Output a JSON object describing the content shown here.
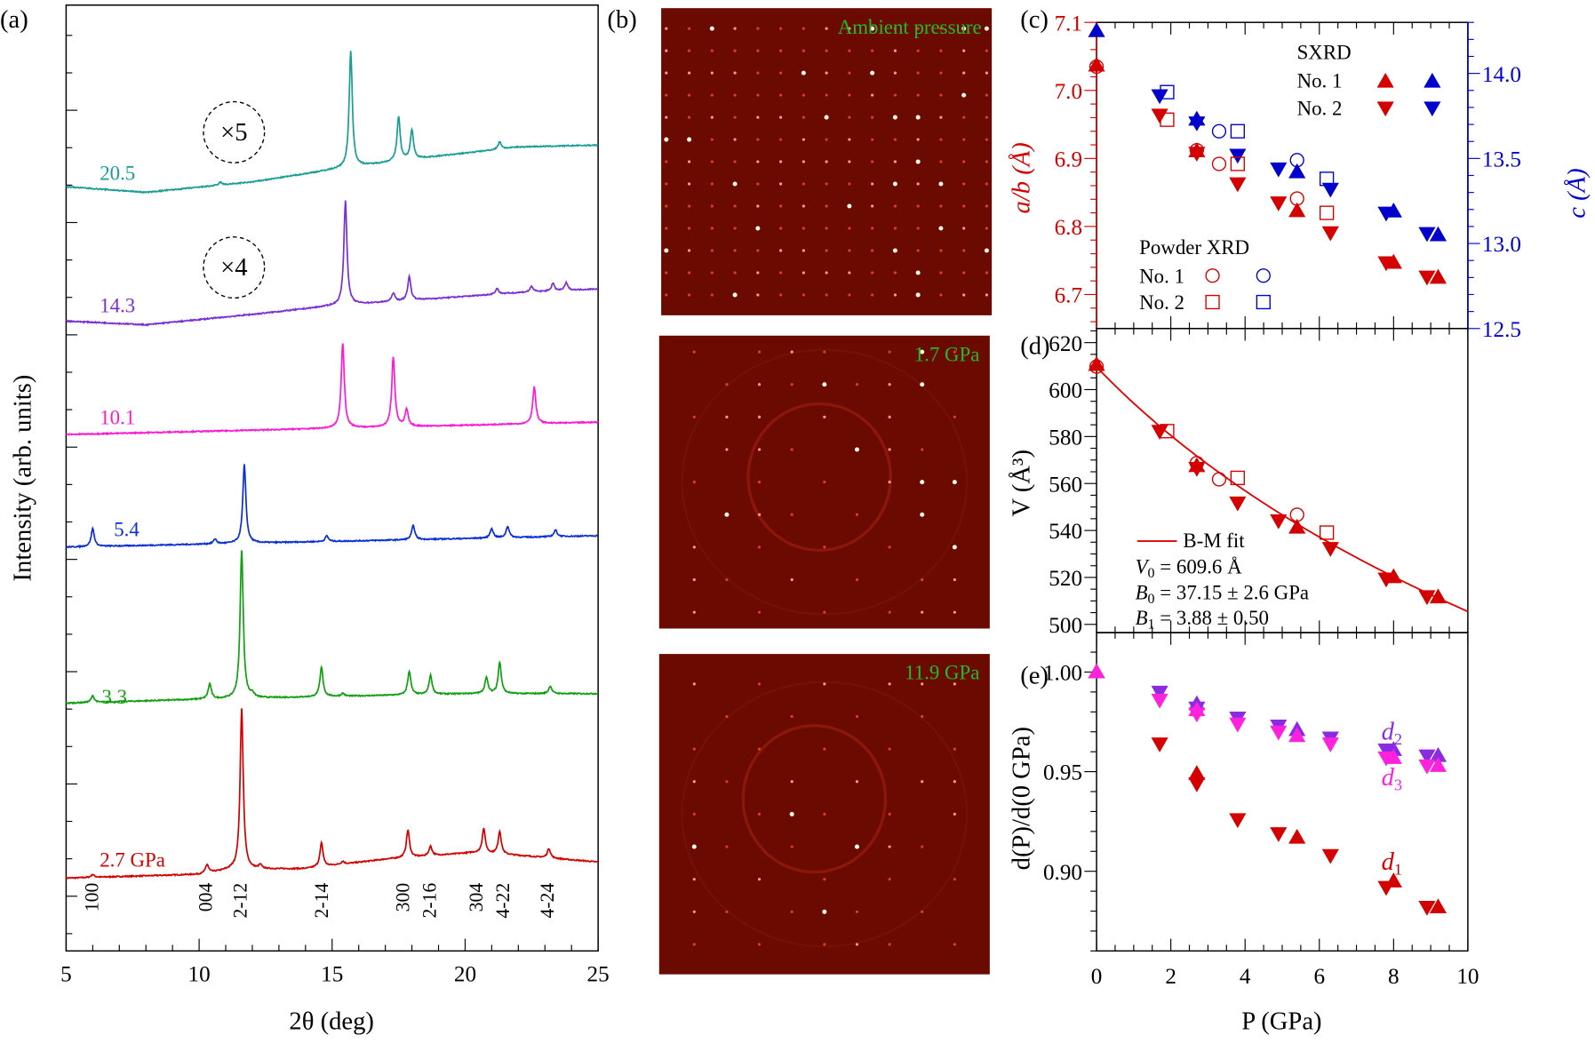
{
  "panel_labels": {
    "a": "(a)",
    "b": "(b)",
    "c": "(c)",
    "d": "(d)",
    "e": "(e)"
  },
  "colors": {
    "red": "#d40000",
    "blue": "#0000cc",
    "teal": "#1a9e94",
    "purple": "#7a2fd6",
    "magenta": "#ff1ad4",
    "green": "#12a012",
    "violet": "#8a2be2",
    "pink": "#ff22dd",
    "image_bg": "#6a0a00",
    "image_label": "#22bb22"
  },
  "chart_data": [
    {
      "id": "a",
      "type": "line",
      "xlabel": "2θ (deg)",
      "ylabel": "Intensity (arb. units)",
      "xlim": [
        5,
        25
      ],
      "xticks": [
        "5",
        "10",
        "15",
        "20",
        "25"
      ],
      "ylim": [
        0,
        100
      ],
      "yticklabels": false,
      "annotations": [
        "×5",
        "×4"
      ],
      "reflections": [
        {
          "label": "100",
          "x": 6.0
        },
        {
          "label": "004",
          "x": 10.3
        },
        {
          "label": "2-12",
          "x": 11.6
        },
        {
          "label": "2-14",
          "x": 14.6
        },
        {
          "label": "300",
          "x": 17.8
        },
        {
          "label": "2-16",
          "x": 18.6
        },
        {
          "label": "304",
          "x": 20.6
        },
        {
          "label": "4-22",
          "x": 21.3
        },
        {
          "label": "4-24",
          "x": 23.1
        }
      ],
      "series": [
        {
          "name": "2.7 GPa",
          "color": "#d40000",
          "baseline": [
            [
              5,
              7.7
            ],
            [
              10,
              8.1
            ],
            [
              11.2,
              8.6
            ],
            [
              14,
              8.7
            ],
            [
              17,
              9.7
            ],
            [
              20.3,
              10.4
            ],
            [
              22,
              10.1
            ],
            [
              25,
              9.4
            ]
          ],
          "peaks": [
            [
              6.0,
              0.3
            ],
            [
              10.3,
              0.9
            ],
            [
              11.6,
              17.0
            ],
            [
              12.3,
              0.4
            ],
            [
              14.6,
              2.5
            ],
            [
              15.4,
              0.3
            ],
            [
              17.85,
              2.9
            ],
            [
              18.7,
              1.0
            ],
            [
              20.7,
              2.6
            ],
            [
              21.3,
              2.4
            ],
            [
              23.15,
              1.0
            ]
          ]
        },
        {
          "name": "3.3",
          "color": "#12a012",
          "baseline": [
            [
              5,
              26.2
            ],
            [
              10,
              26.6
            ],
            [
              15,
              26.9
            ],
            [
              20,
              27.2
            ],
            [
              25,
              27.2
            ]
          ],
          "peaks": [
            [
              6.0,
              0.7
            ],
            [
              10.4,
              1.6
            ],
            [
              11.6,
              15.7
            ],
            [
              12.0,
              0.4
            ],
            [
              14.6,
              3.1
            ],
            [
              15.4,
              0.3
            ],
            [
              17.9,
              2.5
            ],
            [
              18.7,
              2.0
            ],
            [
              20.8,
              1.7
            ],
            [
              21.3,
              3.3
            ],
            [
              23.2,
              0.8
            ]
          ]
        },
        {
          "name": "5.4",
          "color": "#0a2fd8",
          "baseline": [
            [
              5,
              42.7
            ],
            [
              25,
              43.9
            ]
          ],
          "peaks": [
            [
              6.0,
              1.9
            ],
            [
              10.6,
              0.5
            ],
            [
              11.7,
              8.3
            ],
            [
              14.8,
              0.6
            ],
            [
              18.05,
              1.5
            ],
            [
              21.0,
              1.0
            ],
            [
              21.6,
              1.2
            ],
            [
              23.4,
              0.7
            ]
          ]
        },
        {
          "name": "10.1",
          "color": "#ff1ad4",
          "baseline": [
            [
              5,
              54.6
            ],
            [
              25,
              55.9
            ]
          ],
          "peaks": [
            [
              15.4,
              9.0
            ],
            [
              17.3,
              7.4
            ],
            [
              17.8,
              1.8
            ],
            [
              22.6,
              3.9
            ]
          ]
        },
        {
          "name": "14.3",
          "color": "#7a2fd6",
          "baseline": [
            [
              5,
              66.6
            ],
            [
              8,
              66.2
            ],
            [
              12,
              67.3
            ],
            [
              15,
              68.2
            ],
            [
              18,
              68.8
            ],
            [
              22,
              69.6
            ],
            [
              25,
              70.0
            ]
          ],
          "peaks": [
            [
              15.5,
              11.0
            ],
            [
              17.3,
              0.9
            ],
            [
              17.9,
              2.5
            ],
            [
              21.2,
              0.6
            ],
            [
              22.5,
              0.6
            ],
            [
              23.3,
              0.8
            ],
            [
              23.8,
              0.8
            ]
          ]
        },
        {
          "name": "20.5",
          "color": "#1a9e94",
          "baseline": [
            [
              5,
              80.8
            ],
            [
              8,
              80.2
            ],
            [
              12,
              81.3
            ],
            [
              15,
              82.6
            ],
            [
              18,
              83.7
            ],
            [
              22,
              85.0
            ],
            [
              25,
              85.2
            ]
          ],
          "peaks": [
            [
              10.8,
              0.3
            ],
            [
              15.7,
              12.3
            ],
            [
              17.5,
              4.7
            ],
            [
              18.0,
              3.1
            ],
            [
              21.3,
              0.8
            ]
          ]
        }
      ]
    },
    {
      "id": "b",
      "type": "image",
      "images": [
        {
          "label": "Ambient pressure"
        },
        {
          "label": "1.7 GPa"
        },
        {
          "label": "11.9 GPa"
        }
      ]
    },
    {
      "id": "c",
      "type": "scatter",
      "xlim": [
        0,
        10
      ],
      "ylabel_left": "a/b (Å)",
      "ylabel_right": "c (Å)",
      "ylim_left": [
        6.65,
        7.1
      ],
      "ylim_right": [
        12.5,
        14.3
      ],
      "yticks_left": [
        "6.7",
        "6.8",
        "6.9",
        "7.0",
        "7.1"
      ],
      "yticks_right": [
        "12.5",
        "13.0",
        "13.5",
        "14.0"
      ],
      "legend": {
        "sxrd_title": "SXRD",
        "powder_title": "Powder XRD",
        "no1": "No. 1",
        "no2": "No. 2"
      },
      "series": [
        {
          "name": "SXRD No. 1",
          "marker": "triangle-up",
          "filled": true,
          "ab": [
            [
              0,
              7.037
            ],
            [
              2.7,
              6.911
            ],
            [
              5.4,
              6.823
            ],
            [
              8.0,
              6.747
            ],
            [
              9.2,
              6.725
            ]
          ],
          "c": [
            [
              0,
              14.25
            ],
            [
              2.7,
              13.73
            ],
            [
              5.4,
              13.42
            ],
            [
              8.0,
              13.19
            ],
            [
              9.2,
              13.05
            ]
          ]
        },
        {
          "name": "SXRD No. 2",
          "marker": "triangle-down",
          "filled": true,
          "ab": [
            [
              1.7,
              6.964
            ],
            [
              2.7,
              6.908
            ],
            [
              3.8,
              6.863
            ],
            [
              4.9,
              6.835
            ],
            [
              6.3,
              6.791
            ],
            [
              7.8,
              6.747
            ],
            [
              8.9,
              6.726
            ]
          ],
          "c": [
            [
              1.7,
              13.87
            ],
            [
              2.7,
              13.71
            ],
            [
              3.8,
              13.52
            ],
            [
              4.9,
              13.44
            ],
            [
              6.3,
              13.32
            ],
            [
              7.8,
              13.18
            ],
            [
              8.9,
              13.06
            ]
          ]
        },
        {
          "name": "Powder XRD No. 1",
          "marker": "circle",
          "filled": false,
          "ab": [
            [
              0,
              7.035
            ],
            [
              2.7,
              6.912
            ],
            [
              3.3,
              6.892
            ],
            [
              5.4,
              6.841
            ]
          ],
          "c": [
            [
              3.3,
              13.66
            ],
            [
              5.4,
              13.49
            ]
          ]
        },
        {
          "name": "Powder XRD No. 2",
          "marker": "square",
          "filled": false,
          "ab": [
            [
              1.9,
              6.957
            ],
            [
              3.8,
              6.892
            ],
            [
              6.2,
              6.82
            ]
          ],
          "c": [
            [
              1.9,
              13.89
            ],
            [
              3.8,
              13.66
            ],
            [
              6.2,
              13.38
            ]
          ]
        }
      ]
    },
    {
      "id": "d",
      "type": "scatter",
      "xlim": [
        0,
        10
      ],
      "ylabel": "V (Å³)",
      "ylim": [
        496.5,
        626
      ],
      "yticks": [
        "500",
        "520",
        "540",
        "560",
        "580",
        "600",
        "620"
      ],
      "fit": {
        "label": "B-M fit",
        "V0": 609.6,
        "B0": 37.15,
        "B1": 3.88,
        "v0_text": "= 609.6 Å",
        "b0_text": "= 37.15 ± 2.6 GPa",
        "b1_text": "= 3.88 ± 0.50"
      },
      "series": [
        {
          "name": "SXRD No. 1",
          "marker": "triangle-up",
          "filled": true,
          "points": [
            [
              0,
              610.6
            ],
            [
              2.7,
              567.5
            ],
            [
              5.4,
              541.3
            ],
            [
              8.0,
              520.2
            ],
            [
              9.2,
              511.6
            ]
          ]
        },
        {
          "name": "SXRD No. 2",
          "marker": "triangle-down",
          "filled": true,
          "points": [
            [
              1.7,
              582.3
            ],
            [
              2.7,
              566.5
            ],
            [
              3.8,
              551.8
            ],
            [
              4.9,
              544.2
            ],
            [
              6.3,
              532.4
            ],
            [
              7.8,
              519.4
            ],
            [
              8.9,
              511.9
            ]
          ]
        },
        {
          "name": "Powder XRD No. 1",
          "marker": "circle",
          "filled": false,
          "points": [
            [
              0,
              609.8
            ],
            [
              2.7,
              568.7
            ],
            [
              3.3,
              561.8
            ],
            [
              5.4,
              546.7
            ]
          ]
        },
        {
          "name": "Powder XRD No. 2",
          "marker": "square",
          "filled": false,
          "points": [
            [
              1.9,
              582.3
            ],
            [
              3.8,
              562.4
            ],
            [
              6.2,
              539.1
            ]
          ]
        }
      ]
    },
    {
      "id": "e",
      "type": "scatter",
      "xlabel": "P (GPa)",
      "xlim": [
        0,
        10
      ],
      "xticks": [
        "0",
        "2",
        "4",
        "6",
        "8",
        "10"
      ],
      "ylabel": "d(P)/d(0 GPa)",
      "ylim": [
        0.86,
        1.0198
      ],
      "yticks": [
        "0.90",
        "0.95",
        "1.00"
      ],
      "series": [
        {
          "name": "d1",
          "color": "#d40000",
          "up": [
            [
              0,
              1.0
            ],
            [
              2.7,
              0.949
            ],
            [
              5.4,
              0.917
            ],
            [
              8.0,
              0.895
            ],
            [
              9.2,
              0.882
            ]
          ],
          "down": [
            [
              1.7,
              0.964
            ],
            [
              2.7,
              0.944
            ],
            [
              3.8,
              0.926
            ],
            [
              4.9,
              0.919
            ],
            [
              6.3,
              0.908
            ],
            [
              7.8,
              0.892
            ],
            [
              8.9,
              0.882
            ]
          ]
        },
        {
          "name": "d2",
          "color": "#8a2be2",
          "up": [
            [
              0,
              1.0
            ],
            [
              2.7,
              0.984
            ],
            [
              5.4,
              0.971
            ],
            [
              8.0,
              0.961
            ],
            [
              9.2,
              0.958
            ]
          ],
          "down": [
            [
              1.7,
              0.99
            ],
            [
              2.7,
              0.982
            ],
            [
              3.8,
              0.977
            ],
            [
              4.9,
              0.973
            ],
            [
              6.3,
              0.967
            ],
            [
              7.8,
              0.961
            ],
            [
              8.9,
              0.958
            ]
          ]
        },
        {
          "name": "d3",
          "color": "#ff22dd",
          "up": [
            [
              0,
              1.0
            ],
            [
              2.7,
              0.981
            ],
            [
              5.4,
              0.968
            ],
            [
              8.0,
              0.957
            ],
            [
              9.2,
              0.953
            ]
          ],
          "down": [
            [
              1.7,
              0.986
            ],
            [
              2.7,
              0.979
            ],
            [
              3.8,
              0.974
            ],
            [
              4.9,
              0.97
            ],
            [
              6.3,
              0.964
            ],
            [
              7.8,
              0.957
            ],
            [
              8.9,
              0.953
            ]
          ]
        }
      ],
      "labels": {
        "d1": "d",
        "d1_sub": "1",
        "d2": "d",
        "d2_sub": "2",
        "d3": "d",
        "d3_sub": "3"
      }
    }
  ]
}
